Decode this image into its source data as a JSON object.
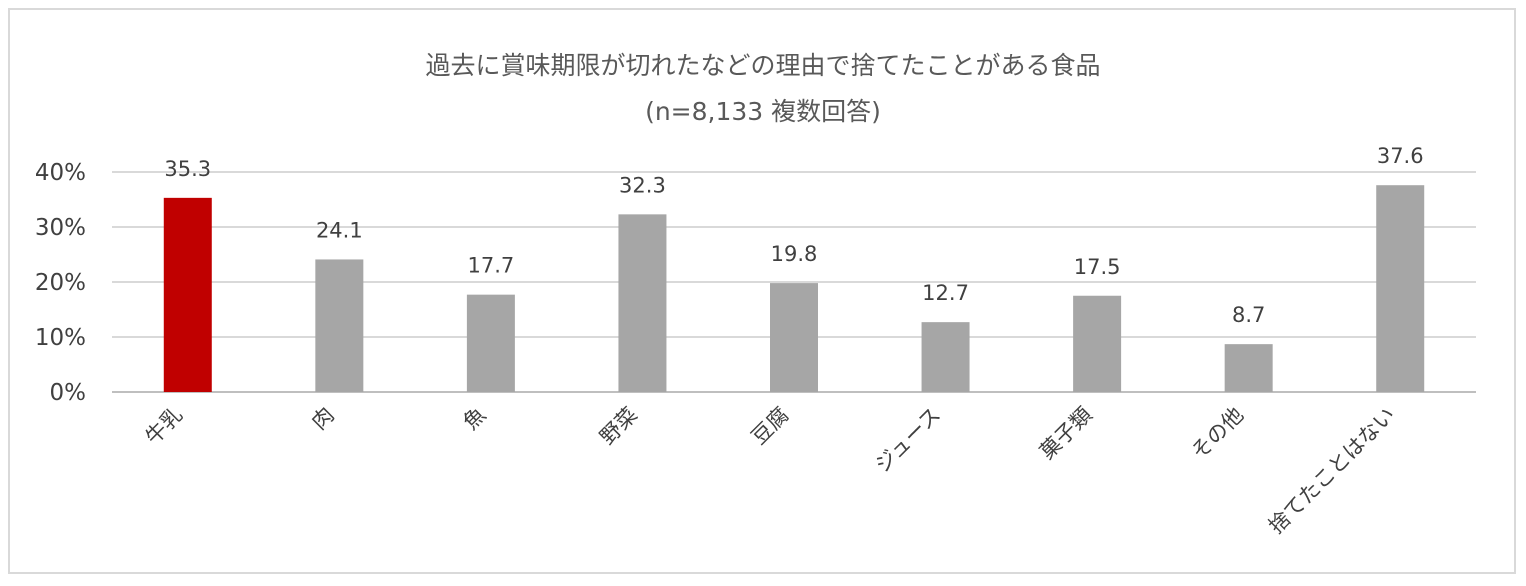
{
  "chart_data": {
    "type": "bar",
    "title": "過去に賞味期限が切れたなどの理由で捨てたことがある食品",
    "subtitle": "(n=8,133 複数回答)",
    "categories": [
      "牛乳",
      "肉",
      "魚",
      "野菜",
      "豆腐",
      "ジュース",
      "菓子類",
      "その他",
      "捨てたことはない"
    ],
    "values": [
      35.3,
      24.1,
      17.7,
      32.3,
      19.8,
      12.7,
      17.5,
      8.7,
      37.6
    ],
    "data_labels": [
      "35.3",
      "24.1",
      "17.7",
      "32.3",
      "19.8",
      "12.7",
      "17.5",
      "8.7",
      "37.6"
    ],
    "yticks": [
      "0%",
      "10%",
      "20%",
      "30%",
      "40%"
    ],
    "ylim": [
      0,
      40
    ],
    "grid": true,
    "legend": "none",
    "highlight_index": 0,
    "colors": {
      "highlight": "#c00000",
      "bar": "#a6a6a6",
      "grid": "#d9d9d9",
      "axis": "#bfbfbf",
      "text": "#404040",
      "title": "#595959"
    },
    "xlabel": "",
    "ylabel": ""
  }
}
